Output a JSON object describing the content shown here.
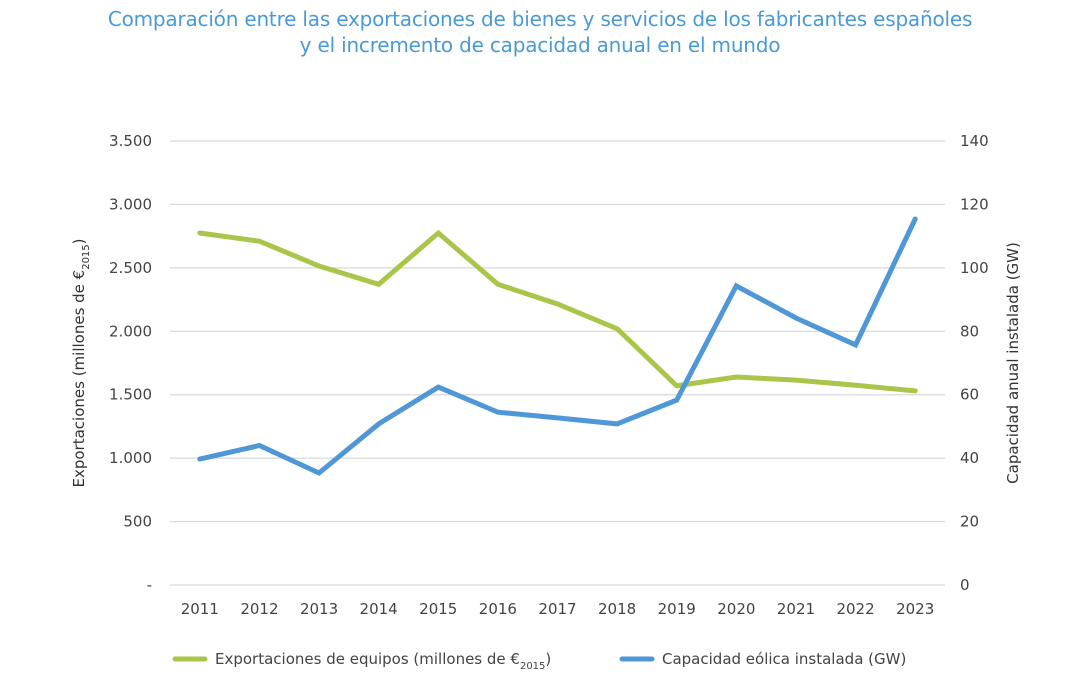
{
  "chart_data": {
    "type": "line",
    "title_line1": "Comparación entre las exportaciones de bienes y servicios de los fabricantes españoles",
    "title_line2": "y el incremento de capacidad anual en el mundo",
    "categories": [
      "2011",
      "2012",
      "2013",
      "2014",
      "2015",
      "2016",
      "2017",
      "2018",
      "2019",
      "2020",
      "2021",
      "2022",
      "2023"
    ],
    "left_axis": {
      "label": "Exportaciones (millones de €",
      "label_sub": "2015",
      "label_end": ")",
      "ylim": [
        0,
        3500
      ],
      "ticks": [
        0,
        500,
        1000,
        1500,
        2000,
        2500,
        3000,
        3500
      ],
      "tick_labels": [
        "-",
        "500",
        "1.000",
        "1.500",
        "2.000",
        "2.500",
        "3.000",
        "3.500"
      ]
    },
    "right_axis": {
      "label": "Capacidad anual instalada (GW)",
      "ylim": [
        0,
        140
      ],
      "ticks": [
        0,
        20,
        40,
        60,
        80,
        100,
        120,
        140
      ],
      "tick_labels": [
        "0",
        "20",
        "40",
        "60",
        "80",
        "100",
        "120",
        "140"
      ]
    },
    "grid": true,
    "legend_position": "bottom",
    "series": [
      {
        "name": "Exportaciones de equipos (millones de €",
        "name_sub": "2015",
        "name_end": ")",
        "axis": "left",
        "color": "#a9c64a",
        "values": [
          2775,
          2710,
          2515,
          2370,
          2775,
          2370,
          2215,
          2020,
          1570,
          1640,
          1615,
          1575,
          1530
        ]
      },
      {
        "name": "Capacidad eólica instalada (GW)",
        "axis": "right",
        "color": "#4f97d6",
        "values": [
          39.7,
          44.0,
          35.3,
          50.8,
          62.4,
          54.5,
          52.7,
          50.8,
          58.3,
          94.3,
          84.2,
          75.7,
          115.4
        ]
      }
    ]
  }
}
